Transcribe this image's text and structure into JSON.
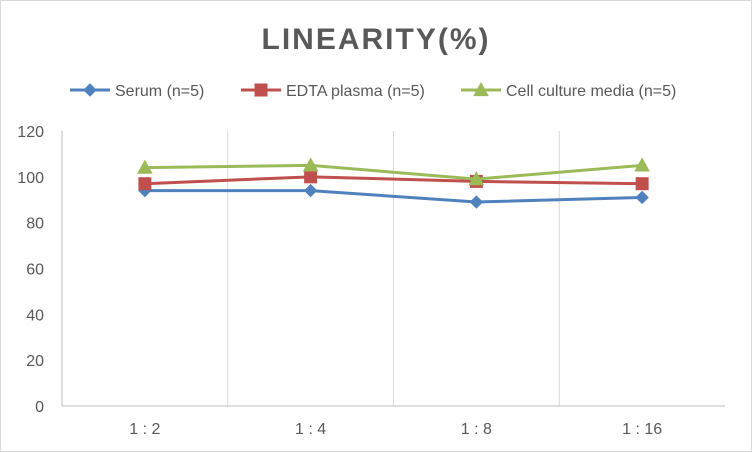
{
  "chart_data": {
    "type": "line",
    "title": "LINEARITY(%)",
    "categories": [
      "1:2",
      "1:4",
      "1:8",
      "1:16"
    ],
    "ylim": [
      0,
      120
    ],
    "yticks": [
      0,
      20,
      40,
      60,
      80,
      100,
      120
    ],
    "grid": "vertical",
    "legend_position": "top",
    "series": [
      {
        "name": "Serum (n=5)",
        "values": [
          94,
          94,
          89,
          91
        ],
        "color": "#4f81bd",
        "marker": "diamond"
      },
      {
        "name": "EDTA plasma (n=5)",
        "values": [
          97,
          100,
          98,
          97
        ],
        "color": "#c0504d",
        "marker": "square"
      },
      {
        "name": "Cell culture media (n=5)",
        "values": [
          104,
          105,
          99,
          105
        ],
        "color": "#9bbb59",
        "marker": "triangle"
      }
    ]
  }
}
